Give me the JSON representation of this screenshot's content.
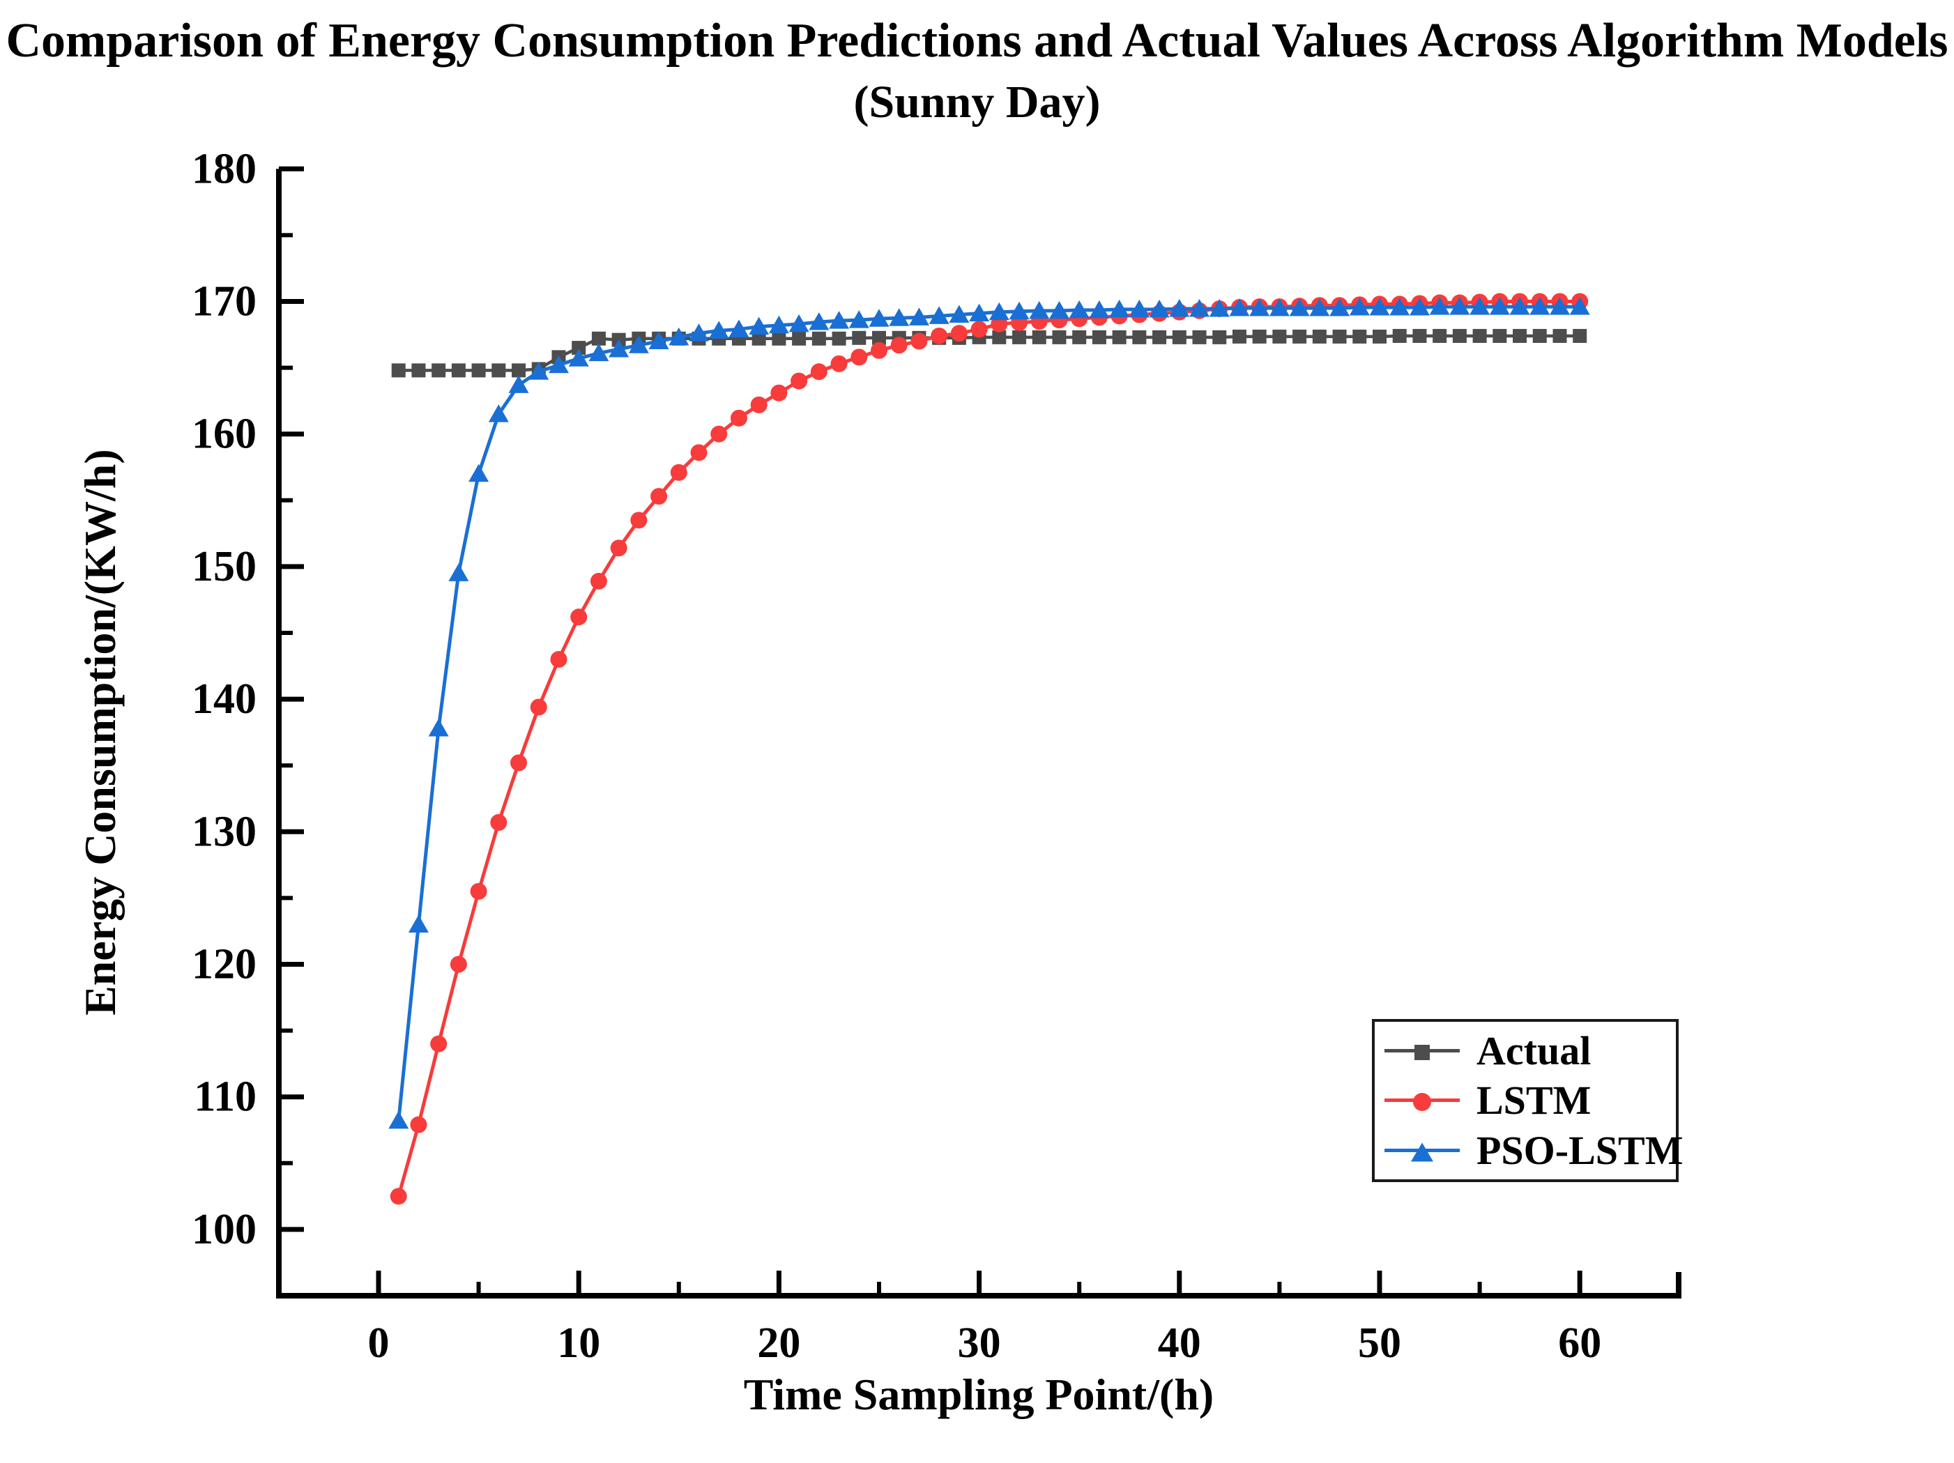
{
  "title": {
    "line1": "Comparison of Energy Consumption Predictions and Actual Values Across Algorithm Models",
    "line2": "(Sunny Day)"
  },
  "axes": {
    "x": {
      "label": "Time Sampling Point/(h)",
      "major_ticks": [
        0,
        10,
        20,
        30,
        40,
        50,
        60
      ],
      "minor_ticks": [
        5,
        15,
        25,
        35,
        45,
        55
      ],
      "range": [
        -5,
        65
      ]
    },
    "y": {
      "label": "Energy Consumption/(KW/h)",
      "major_ticks": [
        100,
        110,
        120,
        130,
        140,
        150,
        160,
        170,
        180
      ],
      "minor_ticks": [
        105,
        115,
        125,
        135,
        145,
        155,
        165,
        175
      ],
      "range": [
        95,
        180
      ]
    }
  },
  "legend": {
    "position": "lower right",
    "items": [
      {
        "label": "Actual",
        "marker": "square"
      },
      {
        "label": "LSTM",
        "marker": "circle"
      },
      {
        "label": "PSO-LSTM",
        "marker": "triangle"
      }
    ]
  },
  "chart_data": {
    "type": "line",
    "title": "Comparison of Energy Consumption Predictions and Actual Values Across Algorithm Models (Sunny Day)",
    "xlabel": "Time Sampling Point/(h)",
    "ylabel": "Energy Consumption/(KW/h)",
    "xlim": [
      -5,
      65
    ],
    "ylim": [
      95,
      180
    ],
    "grid": false,
    "legend_position": "lower right",
    "x": [
      1,
      2,
      3,
      4,
      5,
      6,
      7,
      8,
      9,
      10,
      11,
      12,
      13,
      14,
      15,
      16,
      17,
      18,
      19,
      20,
      21,
      22,
      23,
      24,
      25,
      26,
      27,
      28,
      29,
      30,
      31,
      32,
      33,
      34,
      35,
      36,
      37,
      38,
      39,
      40,
      41,
      42,
      43,
      44,
      45,
      46,
      47,
      48,
      49,
      50,
      51,
      52,
      53,
      54,
      55,
      56,
      57,
      58,
      59,
      60
    ],
    "series": [
      {
        "name": "Actual",
        "color": "#4D4D4D",
        "marker": "square",
        "values": [
          164.8,
          164.8,
          164.8,
          164.8,
          164.8,
          164.8,
          164.8,
          164.9,
          165.8,
          166.5,
          167.2,
          167.1,
          167.2,
          167.2,
          167.2,
          167.2,
          167.2,
          167.2,
          167.2,
          167.2,
          167.2,
          167.2,
          167.2,
          167.25,
          167.25,
          167.25,
          167.25,
          167.25,
          167.25,
          167.3,
          167.3,
          167.3,
          167.3,
          167.3,
          167.3,
          167.3,
          167.3,
          167.3,
          167.3,
          167.3,
          167.3,
          167.3,
          167.35,
          167.35,
          167.35,
          167.35,
          167.35,
          167.35,
          167.35,
          167.35,
          167.4,
          167.4,
          167.4,
          167.4,
          167.4,
          167.4,
          167.4,
          167.4,
          167.4,
          167.4
        ]
      },
      {
        "name": "LSTM",
        "color": "#F83B3B",
        "marker": "circle",
        "values": [
          102.5,
          107.9,
          114.0,
          120.0,
          125.5,
          130.7,
          135.2,
          139.4,
          143.0,
          146.2,
          148.9,
          151.4,
          153.5,
          155.3,
          157.1,
          158.6,
          160.0,
          161.2,
          162.2,
          163.1,
          164.0,
          164.7,
          165.3,
          165.8,
          166.3,
          166.7,
          167.0,
          167.4,
          167.6,
          167.9,
          168.3,
          168.4,
          168.5,
          168.6,
          168.7,
          168.8,
          168.9,
          169.0,
          169.1,
          169.2,
          169.3,
          169.45,
          169.55,
          169.6,
          169.6,
          169.65,
          169.7,
          169.7,
          169.75,
          169.8,
          169.8,
          169.85,
          169.9,
          169.9,
          169.95,
          170.0,
          170.0,
          170.0,
          170.0,
          170.0
        ]
      },
      {
        "name": "PSO-LSTM",
        "color": "#1A6FD4",
        "marker": "triangle",
        "values": [
          108.2,
          123.0,
          137.8,
          149.5,
          157.0,
          161.5,
          163.7,
          164.7,
          165.2,
          165.7,
          166.1,
          166.4,
          166.7,
          167.0,
          167.3,
          167.6,
          167.8,
          167.9,
          168.1,
          168.2,
          168.3,
          168.45,
          168.55,
          168.6,
          168.7,
          168.75,
          168.8,
          168.9,
          169.0,
          169.1,
          169.2,
          169.25,
          169.3,
          169.3,
          169.35,
          169.35,
          169.4,
          169.4,
          169.4,
          169.45,
          169.45,
          169.45,
          169.5,
          169.5,
          169.5,
          169.5,
          169.5,
          169.5,
          169.55,
          169.55,
          169.55,
          169.55,
          169.6,
          169.6,
          169.6,
          169.6,
          169.6,
          169.6,
          169.6,
          169.6
        ]
      }
    ]
  }
}
